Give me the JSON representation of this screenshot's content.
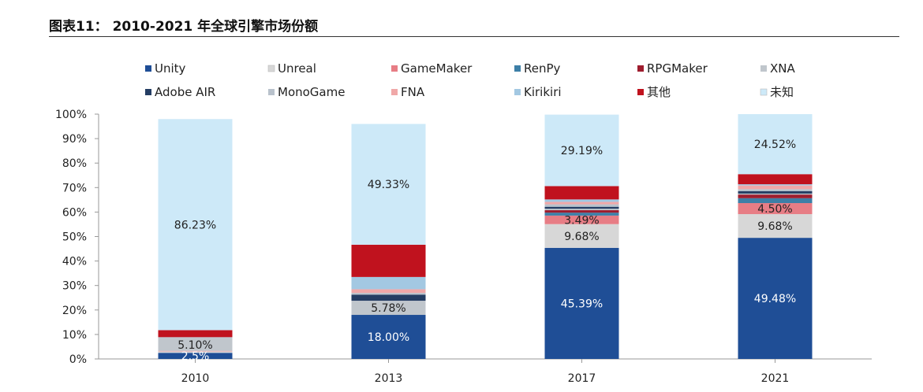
{
  "figure_title": "图表11：  2010-2021 年全球引擎市场份额",
  "chart_data": {
    "type": "bar",
    "stacked": true,
    "categories": [
      "2010",
      "2013",
      "2017",
      "2021"
    ],
    "ylim": [
      0,
      100
    ],
    "yticks": [
      "0%",
      "10%",
      "20%",
      "30%",
      "40%",
      "50%",
      "60%",
      "70%",
      "80%",
      "90%",
      "100%"
    ],
    "legend_position": "top",
    "series": [
      {
        "name": "Unity",
        "color": "#1f4e96",
        "values": [
          2.5,
          18.0,
          45.39,
          49.48
        ],
        "labels": [
          "2.5%",
          "18.00%",
          "45.39%",
          "49.48%"
        ]
      },
      {
        "name": "Unreal",
        "color": "#d7d7d7",
        "values": [
          0.6,
          0.0,
          9.68,
          9.68
        ],
        "labels": [
          "",
          "",
          "9.68%",
          "9.68%"
        ]
      },
      {
        "name": "GameMaker",
        "color": "#e77d85",
        "values": [
          0.2,
          0.0,
          3.49,
          4.5
        ],
        "labels": [
          "",
          "",
          "3.49%",
          "4.50%"
        ]
      },
      {
        "name": "RenPy",
        "color": "#3d7fa7",
        "values": [
          0.0,
          0.0,
          1.2,
          2.0
        ],
        "labels": [
          "",
          "",
          "",
          ""
        ]
      },
      {
        "name": "RPGMaker",
        "color": "#9e1d2e",
        "values": [
          0.0,
          0.0,
          1.0,
          1.5
        ],
        "labels": [
          "",
          "",
          "",
          ""
        ]
      },
      {
        "name": "XNA",
        "color": "#c0c6cc",
        "values": [
          5.1,
          5.78,
          0.6,
          0.4
        ],
        "labels": [
          "5.10%",
          "5.78%",
          "",
          ""
        ]
      },
      {
        "name": "Adobe AIR",
        "color": "#243d63",
        "values": [
          0.0,
          2.5,
          0.8,
          1.0
        ],
        "labels": [
          "",
          "",
          "",
          ""
        ]
      },
      {
        "name": "MonoGame",
        "color": "#b9c2cc",
        "values": [
          0.5,
          0.7,
          1.0,
          0.8
        ],
        "labels": [
          "",
          "",
          "",
          ""
        ]
      },
      {
        "name": "FNA",
        "color": "#f0a8a8",
        "values": [
          0.0,
          1.5,
          1.0,
          1.5
        ],
        "labels": [
          "",
          "",
          "",
          ""
        ]
      },
      {
        "name": "Kirikiri",
        "color": "#a3c8e2",
        "values": [
          0.0,
          5.0,
          1.0,
          0.5
        ],
        "labels": [
          "",
          "",
          "",
          ""
        ]
      },
      {
        "name": "其他",
        "color": "#c0121e",
        "values": [
          2.86,
          13.19,
          5.45,
          4.12
        ],
        "labels": [
          "",
          "",
          "",
          ""
        ]
      },
      {
        "name": "未知",
        "color": "#cde9f8",
        "values": [
          86.23,
          49.33,
          29.19,
          24.52
        ],
        "labels": [
          "86.23%",
          "49.33%",
          "29.19%",
          "24.52%"
        ]
      }
    ]
  }
}
